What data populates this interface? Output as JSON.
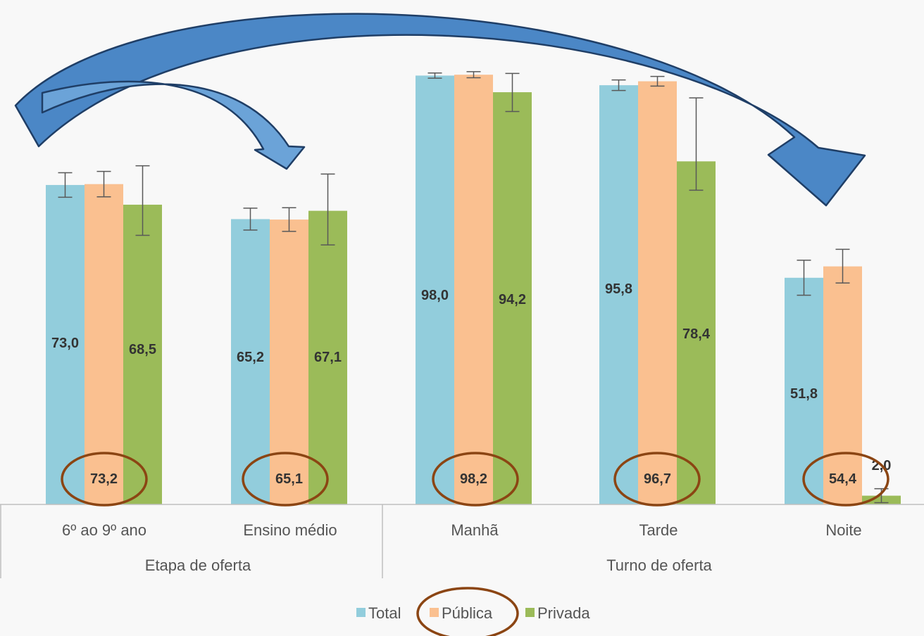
{
  "chart_data": {
    "type": "bar",
    "groups": [
      {
        "label": "Etapa de oferta",
        "categories": [
          "6º ao 9º ano",
          "Ensino médio"
        ]
      },
      {
        "label": "Turno de oferta",
        "categories": [
          "Manhã",
          "Tarde",
          "Noite"
        ]
      }
    ],
    "categories": [
      "6º ao 9º ano",
      "Ensino médio",
      "Manhã",
      "Tarde",
      "Noite"
    ],
    "series": [
      {
        "name": "Total",
        "color": "#92cddc",
        "values": [
          73.0,
          65.2,
          98.0,
          95.8,
          51.8
        ],
        "labels": [
          "73,0",
          "65,2",
          "98,0",
          "95,8",
          "51,8"
        ],
        "error": [
          [
            70.2,
            75.8
          ],
          [
            62.7,
            67.7
          ],
          [
            97.4,
            98.6
          ],
          [
            94.6,
            97.0
          ],
          [
            47.8,
            55.8
          ]
        ]
      },
      {
        "name": "Pública",
        "color": "#fac090",
        "values": [
          73.2,
          65.1,
          98.2,
          96.7,
          54.4
        ],
        "labels": [
          "73,2",
          "65,1",
          "98,2",
          "96,7",
          "54,4"
        ],
        "error": [
          [
            70.3,
            76.1
          ],
          [
            62.4,
            67.8
          ],
          [
            97.5,
            98.9
          ],
          [
            95.6,
            97.8
          ],
          [
            50.6,
            58.3
          ]
        ]
      },
      {
        "name": "Privada",
        "color": "#9bbb59",
        "values": [
          68.5,
          67.1,
          94.2,
          78.4,
          2.0
        ],
        "labels": [
          "68,5",
          "67,1",
          "94,2",
          "78,4",
          "2,0"
        ],
        "error": [
          [
            61.5,
            77.4
          ],
          [
            59.3,
            75.5
          ],
          [
            89.8,
            98.5
          ],
          [
            71.8,
            92.9
          ],
          [
            0.4,
            3.6
          ]
        ]
      }
    ],
    "ylim": [
      0,
      101.5
    ],
    "legend": "bottom",
    "grid": false,
    "highlighted_series": "Pública"
  }
}
